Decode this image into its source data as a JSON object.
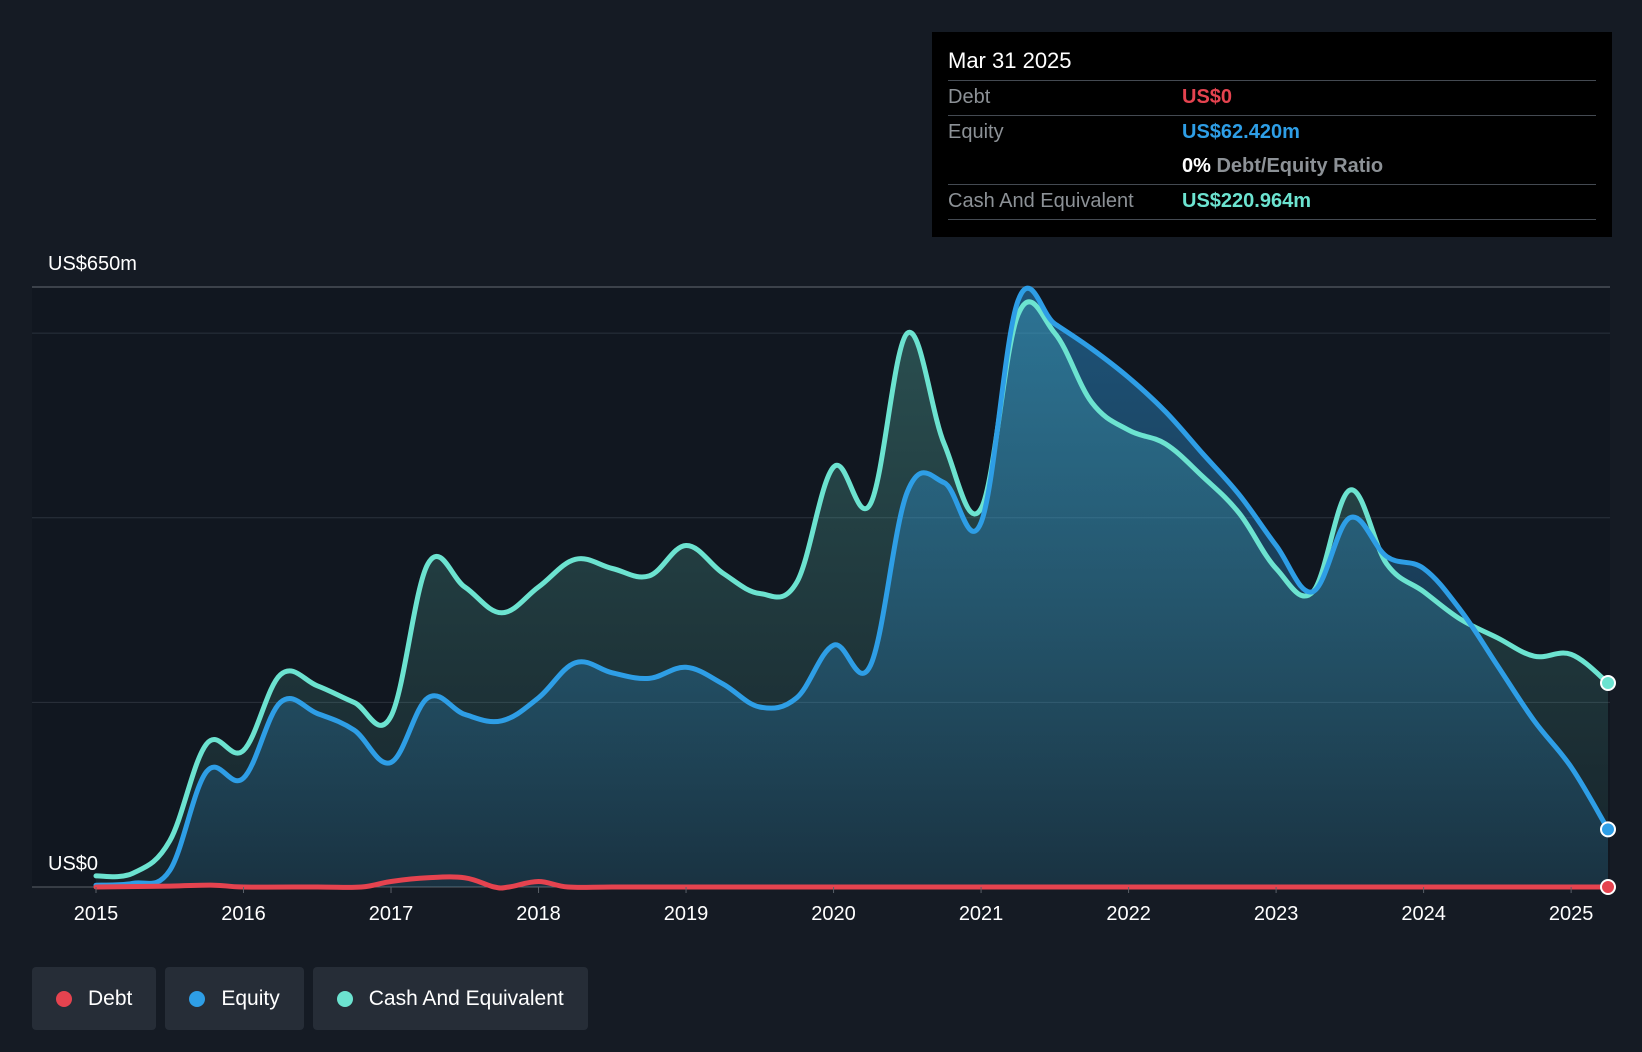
{
  "tooltip": {
    "date": "Mar 31 2025",
    "debt_label": "Debt",
    "debt_value": "US$0",
    "equity_label": "Equity",
    "equity_value": "US$62.420m",
    "ratio_pct": "0%",
    "ratio_label": "Debt/Equity Ratio",
    "cash_label": "Cash And Equivalent",
    "cash_value": "US$220.964m"
  },
  "legend": {
    "debt": "Debt",
    "equity": "Equity",
    "cash": "Cash And Equivalent"
  },
  "colors": {
    "background": "#151b24",
    "debt": "#e5434f",
    "equity": "#2e9ee6",
    "cash": "#6ce3d0"
  },
  "chart_data": {
    "type": "area",
    "title": "",
    "xlabel": "",
    "ylabel": "",
    "y_top_label": "US$650m",
    "y_bottom_label": "US$0",
    "ylim": [
      0,
      650
    ],
    "xlim": [
      2015.0,
      2025.25
    ],
    "x_ticks": [
      "2015",
      "2016",
      "2017",
      "2018",
      "2019",
      "2020",
      "2021",
      "2022",
      "2023",
      "2024",
      "2025"
    ],
    "series": [
      {
        "name": "Debt",
        "key": "debt",
        "points": [
          [
            2015.0,
            0
          ],
          [
            2015.5,
            1
          ],
          [
            2015.8,
            2
          ],
          [
            2016.0,
            0
          ],
          [
            2016.5,
            0
          ],
          [
            2016.8,
            0
          ],
          [
            2017.0,
            6
          ],
          [
            2017.25,
            10
          ],
          [
            2017.5,
            10
          ],
          [
            2017.7,
            0
          ],
          [
            2017.8,
            0
          ],
          [
            2018.0,
            6
          ],
          [
            2018.2,
            0
          ],
          [
            2018.5,
            0
          ],
          [
            2019.0,
            0
          ],
          [
            2020.0,
            0
          ],
          [
            2021.0,
            0
          ],
          [
            2022.0,
            0
          ],
          [
            2023.0,
            0
          ],
          [
            2024.0,
            0
          ],
          [
            2025.0,
            0
          ],
          [
            2025.25,
            0
          ]
        ]
      },
      {
        "name": "Equity",
        "key": "equity",
        "points": [
          [
            2015.0,
            2
          ],
          [
            2015.25,
            4
          ],
          [
            2015.5,
            18
          ],
          [
            2015.75,
            125
          ],
          [
            2016.0,
            118
          ],
          [
            2016.25,
            200
          ],
          [
            2016.5,
            188
          ],
          [
            2016.75,
            170
          ],
          [
            2017.0,
            135
          ],
          [
            2017.25,
            205
          ],
          [
            2017.5,
            187
          ],
          [
            2017.75,
            180
          ],
          [
            2018.0,
            205
          ],
          [
            2018.25,
            243
          ],
          [
            2018.5,
            232
          ],
          [
            2018.75,
            226
          ],
          [
            2019.0,
            238
          ],
          [
            2019.25,
            220
          ],
          [
            2019.5,
            195
          ],
          [
            2019.75,
            205
          ],
          [
            2020.0,
            262
          ],
          [
            2020.25,
            240
          ],
          [
            2020.5,
            428
          ],
          [
            2020.75,
            438
          ],
          [
            2021.0,
            395
          ],
          [
            2021.25,
            635
          ],
          [
            2021.5,
            610
          ],
          [
            2021.75,
            583
          ],
          [
            2022.0,
            552
          ],
          [
            2022.25,
            515
          ],
          [
            2022.5,
            470
          ],
          [
            2022.75,
            425
          ],
          [
            2023.0,
            370
          ],
          [
            2023.25,
            320
          ],
          [
            2023.5,
            400
          ],
          [
            2023.75,
            358
          ],
          [
            2024.0,
            345
          ],
          [
            2024.25,
            300
          ],
          [
            2024.5,
            240
          ],
          [
            2024.75,
            180
          ],
          [
            2025.0,
            130
          ],
          [
            2025.25,
            62.4
          ]
        ]
      },
      {
        "name": "Cash And Equivalent",
        "key": "cash",
        "points": [
          [
            2015.0,
            12
          ],
          [
            2015.25,
            15
          ],
          [
            2015.5,
            50
          ],
          [
            2015.75,
            155
          ],
          [
            2016.0,
            148
          ],
          [
            2016.25,
            230
          ],
          [
            2016.5,
            218
          ],
          [
            2016.75,
            200
          ],
          [
            2017.0,
            185
          ],
          [
            2017.25,
            350
          ],
          [
            2017.5,
            325
          ],
          [
            2017.75,
            297
          ],
          [
            2018.0,
            325
          ],
          [
            2018.25,
            355
          ],
          [
            2018.5,
            345
          ],
          [
            2018.75,
            337
          ],
          [
            2019.0,
            370
          ],
          [
            2019.25,
            340
          ],
          [
            2019.5,
            318
          ],
          [
            2019.75,
            330
          ],
          [
            2020.0,
            455
          ],
          [
            2020.25,
            415
          ],
          [
            2020.5,
            600
          ],
          [
            2020.75,
            480
          ],
          [
            2021.0,
            410
          ],
          [
            2021.25,
            620
          ],
          [
            2021.5,
            600
          ],
          [
            2021.75,
            525
          ],
          [
            2022.0,
            495
          ],
          [
            2022.25,
            480
          ],
          [
            2022.5,
            445
          ],
          [
            2022.75,
            405
          ],
          [
            2023.0,
            345
          ],
          [
            2023.25,
            320
          ],
          [
            2023.5,
            430
          ],
          [
            2023.75,
            350
          ],
          [
            2024.0,
            320
          ],
          [
            2024.25,
            290
          ],
          [
            2024.5,
            270
          ],
          [
            2024.75,
            250
          ],
          [
            2025.0,
            252
          ],
          [
            2025.25,
            221
          ]
        ]
      }
    ]
  }
}
